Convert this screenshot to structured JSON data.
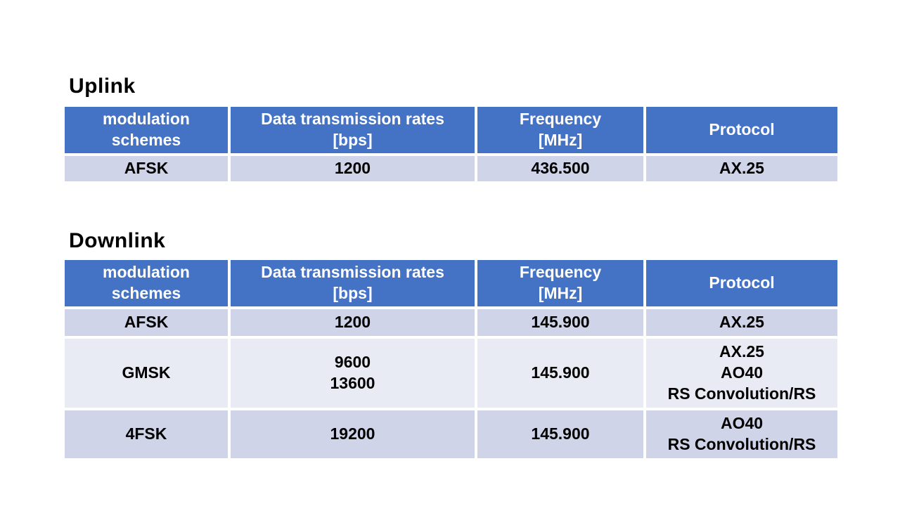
{
  "slide": {
    "background": "#ffffff"
  },
  "colors": {
    "slide_bg": "#ffffff",
    "header_bg": "#4472c4",
    "header_text": "#ffffff",
    "row_band_dark": "#cfd4e8",
    "row_band_light": "#e9ebf4",
    "body_text": "#000000",
    "title_text": "#000000"
  },
  "uplink": {
    "title": "Uplink",
    "headers": [
      "modulation\nschemes",
      "Data transmission rates\n[bps]",
      "Frequency\n[MHz]",
      "Protocol"
    ],
    "rows": [
      [
        "AFSK",
        "1200",
        "436.500",
        "AX.25"
      ]
    ]
  },
  "downlink": {
    "title": "Downlink",
    "headers": [
      "modulation\nschemes",
      "Data transmission rates\n[bps]",
      "Frequency\n[MHz]",
      "Protocol"
    ],
    "rows": [
      [
        "AFSK",
        "1200",
        "145.900",
        "AX.25"
      ],
      [
        "GMSK",
        "9600\n13600",
        "145.900",
        "AX.25\nAO40\nRS Convolution/RS"
      ],
      [
        "4FSK",
        "19200",
        "145.900",
        "AO40\nRS Convolution/RS"
      ]
    ]
  }
}
